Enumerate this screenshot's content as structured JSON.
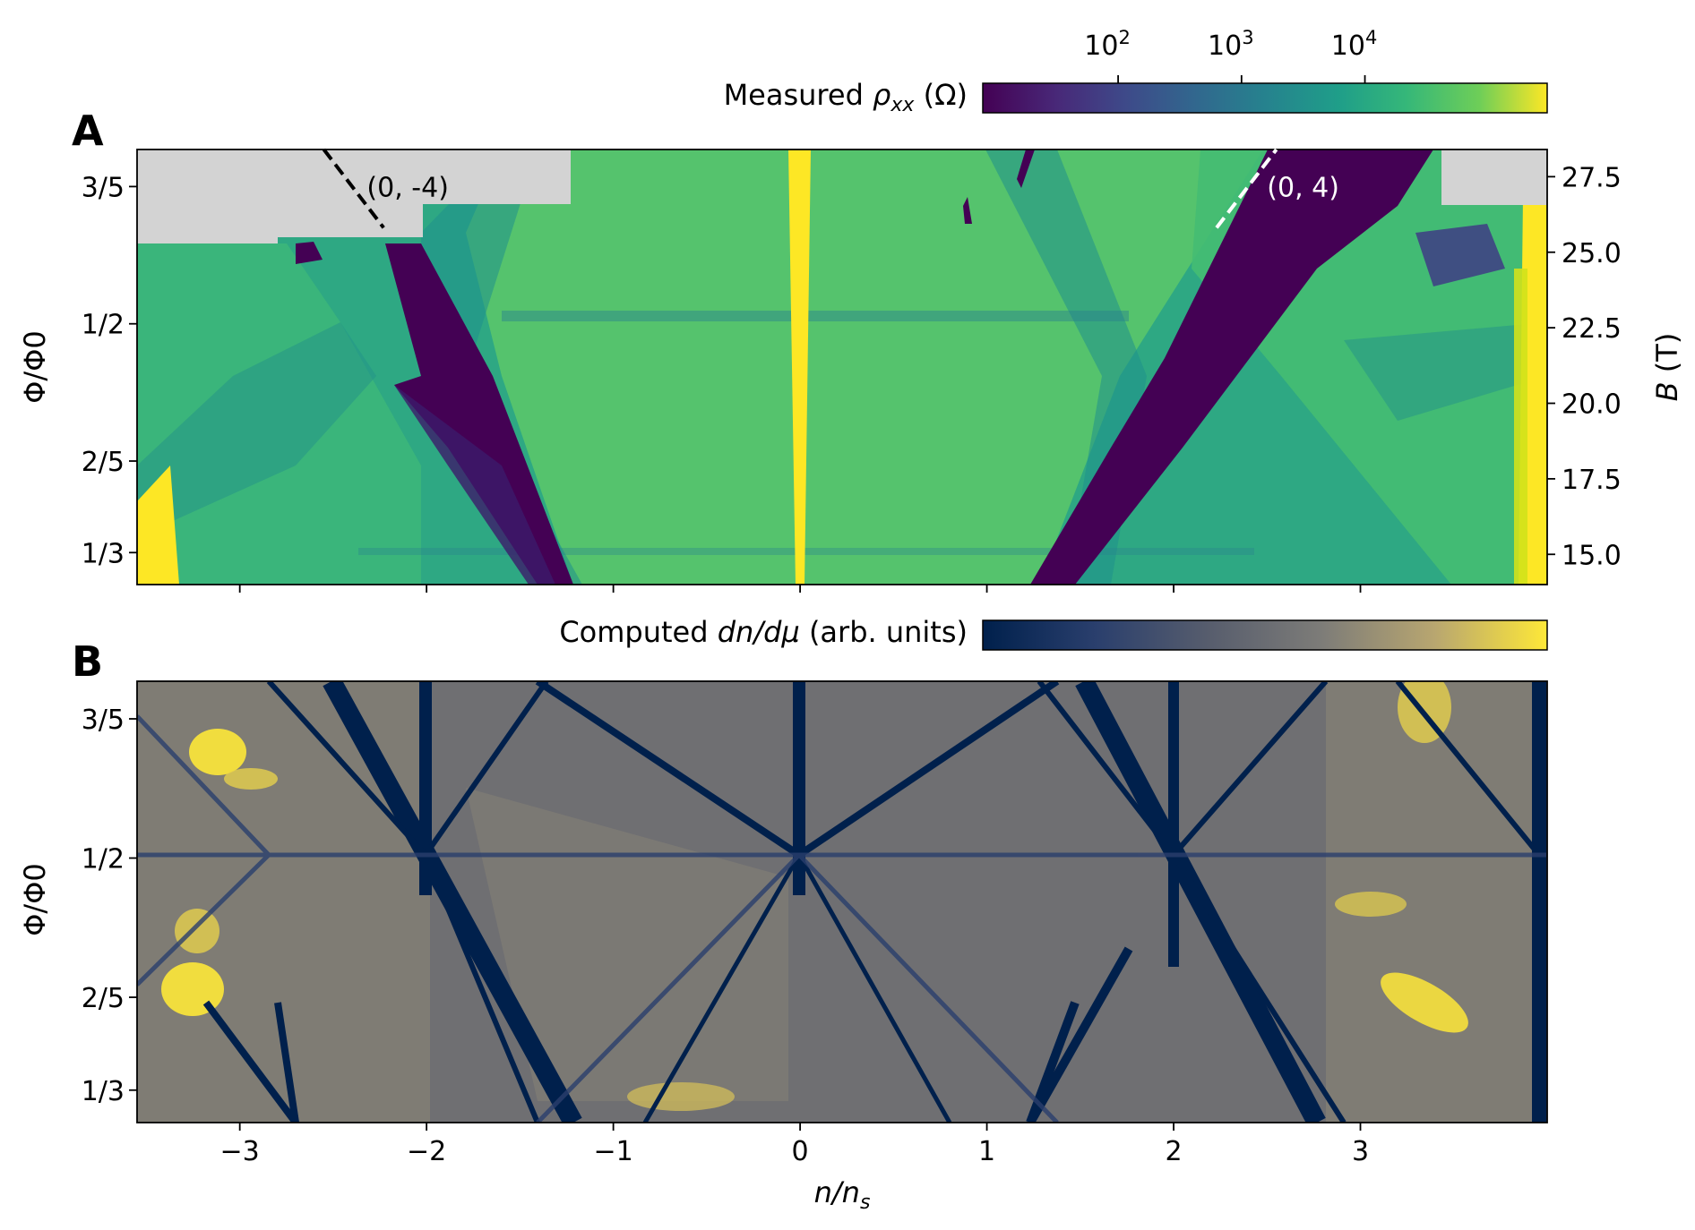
{
  "chart_data": [
    {
      "panel": "A",
      "type": "heatmap",
      "colorbar": {
        "label_pre": "Measured ",
        "label_var": "ρ",
        "label_sub": "xx",
        "label_post": " (Ω)",
        "scale": "log",
        "ticks": [
          {
            "base": "10",
            "exp": "2",
            "value": 100
          },
          {
            "base": "10",
            "exp": "3",
            "value": 1000
          },
          {
            "base": "10",
            "exp": "4",
            "value": 10000
          }
        ],
        "range": [
          8,
          300000
        ],
        "colormap": "viridis"
      },
      "xlim": [
        -3.55,
        4.0
      ],
      "ylim_left": [
        0.31,
        0.627
      ],
      "left_ylabel": "Φ/Φ0",
      "left_yticks": [
        {
          "label": "3/5",
          "value": 0.6
        },
        {
          "label": "1/2",
          "value": 0.5
        },
        {
          "label": "2/5",
          "value": 0.4
        },
        {
          "label": "1/3",
          "value": 0.3333
        }
      ],
      "right_ylabel_var": "B",
      "right_ylabel_unit": " (T)",
      "right_yticks": [
        {
          "label": "27.5",
          "value": 27.5
        },
        {
          "label": "25.0",
          "value": 25.0
        },
        {
          "label": "22.5",
          "value": 22.5
        },
        {
          "label": "20.0",
          "value": 20.0
        },
        {
          "label": "17.5",
          "value": 17.5
        },
        {
          "label": "15.0",
          "value": 15.0
        }
      ],
      "right_ylim": [
        14.0,
        28.4
      ],
      "annotations": [
        {
          "text": "(0, -4)",
          "color": "#000000",
          "line": [
            [
              -2.55,
              0.627
            ],
            [
              -2.23,
              0.57
            ]
          ],
          "text_at": [
            -2.32,
            0.6
          ]
        },
        {
          "text": "(0, 4)",
          "color": "#ffffff",
          "line": [
            [
              2.23,
              0.57
            ],
            [
              2.55,
              0.627
            ]
          ],
          "text_at": [
            2.5,
            0.6
          ]
        }
      ],
      "missing_data_color": "#d3d3d3"
    },
    {
      "panel": "B",
      "type": "heatmap",
      "colorbar": {
        "label_pre": "Computed ",
        "label_var": "dn/dμ",
        "label_post": " (arb. units)",
        "colormap": "cividis"
      },
      "xlim": [
        -3.55,
        4.0
      ],
      "ylim": [
        0.31,
        0.627
      ],
      "xlabel_var": "n/n",
      "xlabel_sub": "s",
      "ylabel": "Φ/Φ0",
      "xticks": [
        {
          "label": "−3",
          "value": -3
        },
        {
          "label": "−2",
          "value": -2
        },
        {
          "label": "−1",
          "value": -1
        },
        {
          "label": "0",
          "value": 0
        },
        {
          "label": "1",
          "value": 1
        },
        {
          "label": "2",
          "value": 2
        },
        {
          "label": "3",
          "value": 3
        }
      ],
      "yticks": [
        {
          "label": "3/5",
          "value": 0.6
        },
        {
          "label": "1/2",
          "value": 0.5
        },
        {
          "label": "2/5",
          "value": 0.4
        },
        {
          "label": "1/3",
          "value": 0.3333
        }
      ]
    }
  ]
}
